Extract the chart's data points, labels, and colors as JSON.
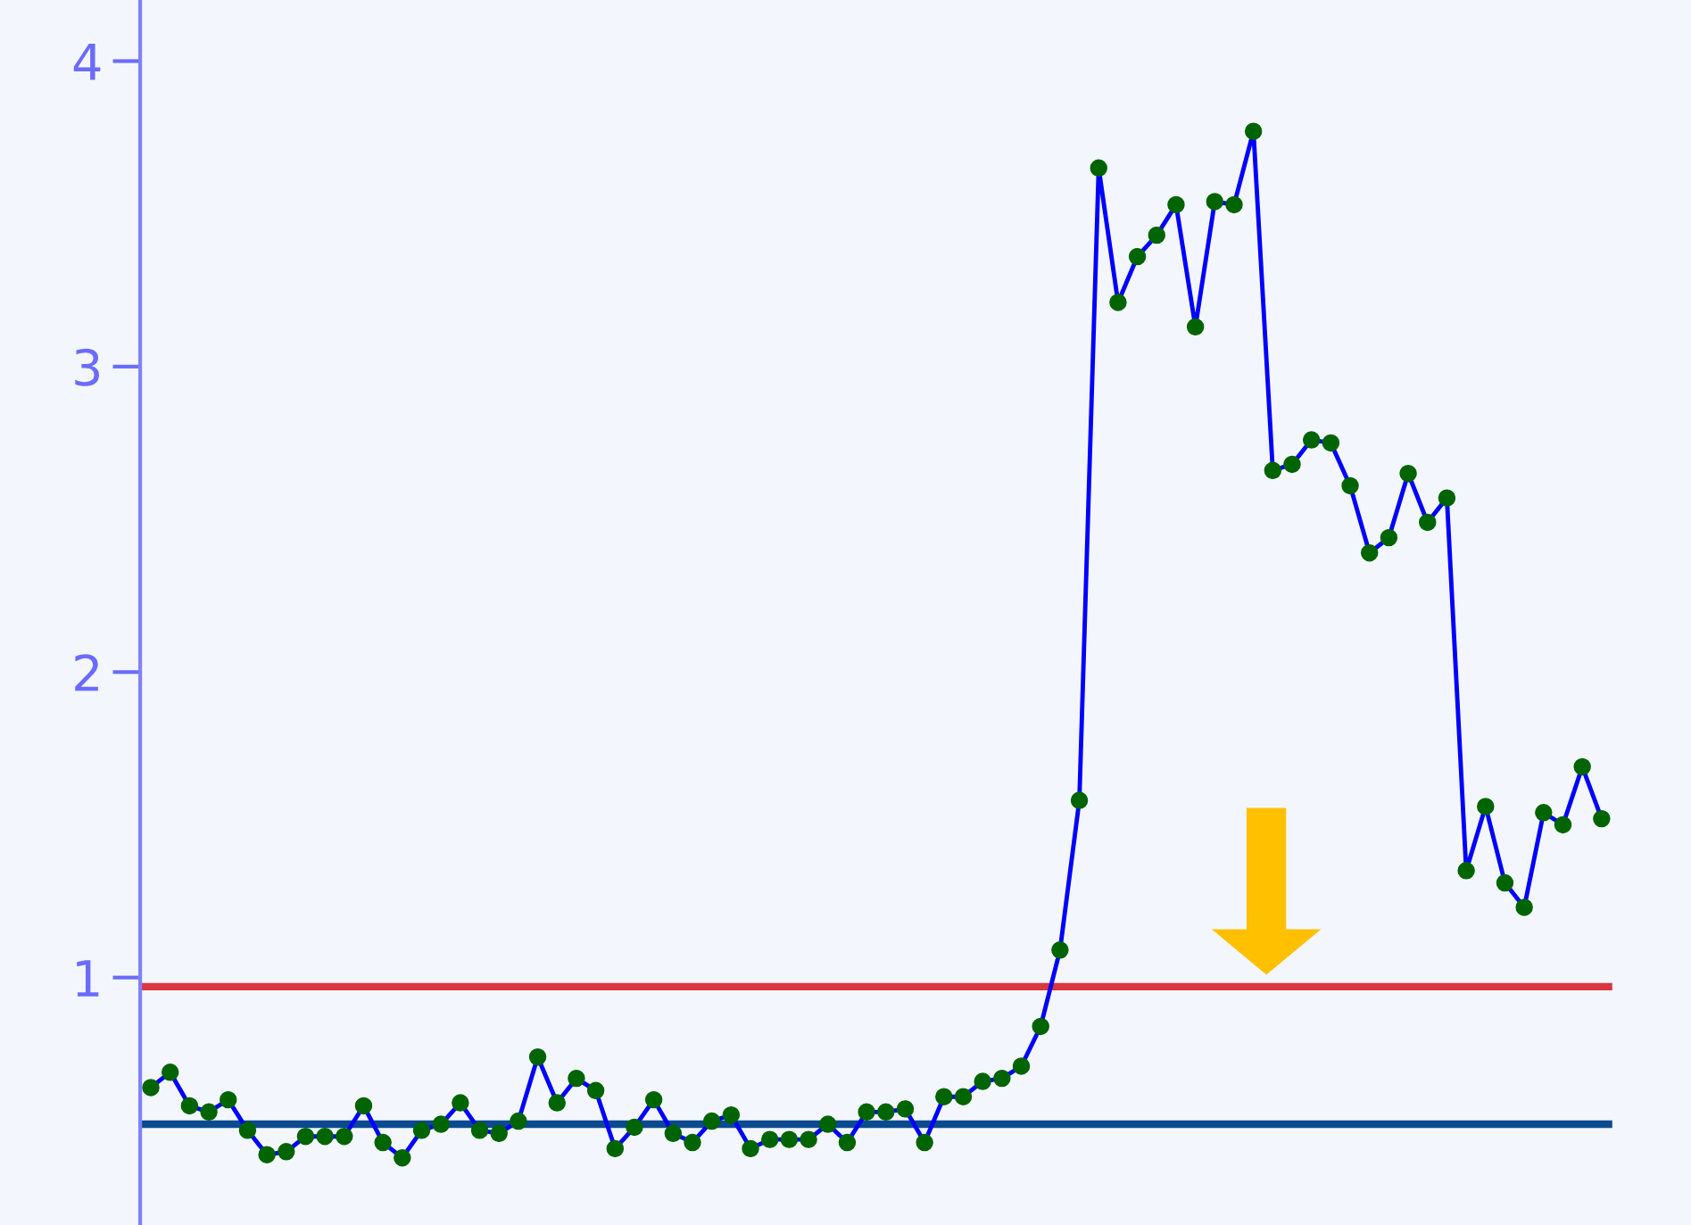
{
  "chart_data": {
    "type": "line",
    "categories": [
      null,
      null,
      null,
      null,
      null,
      null,
      null,
      null,
      null,
      null,
      null,
      null,
      null,
      null,
      null,
      null,
      null,
      null,
      null,
      null,
      null,
      null,
      null,
      null,
      null,
      null,
      null,
      null,
      null,
      null,
      null,
      null,
      null,
      null,
      null,
      null,
      null,
      null,
      null,
      null,
      null,
      null,
      null,
      null,
      null,
      null,
      null,
      null,
      null,
      null,
      null,
      null,
      null,
      null,
      null,
      null,
      null,
      null,
      null,
      null,
      null,
      null,
      null,
      null,
      null,
      null,
      null,
      null,
      null,
      null,
      null,
      null,
      null,
      null,
      null,
      null
    ],
    "series": [
      {
        "color": "#0000ff",
        "values": [
          0.64,
          0.69,
          0.58,
          0.56,
          0.6,
          0.5,
          0.42,
          0.43,
          0.48,
          0.48,
          0.48,
          0.58,
          0.46,
          0.41,
          0.5,
          0.52,
          0.59,
          0.5,
          0.49,
          0.53,
          0.74,
          0.59,
          0.67,
          0.63,
          0.44,
          0.51,
          0.6,
          0.49,
          0.46,
          0.53,
          0.55,
          0.44,
          0.47,
          0.47,
          0.47,
          0.52,
          0.46,
          0.56,
          0.56,
          0.57,
          0.46,
          0.61,
          0.61,
          0.66,
          0.67,
          0.71,
          0.84,
          1.09,
          1.58,
          3.65,
          3.21,
          3.36,
          3.43,
          3.53,
          3.13,
          3.54,
          3.53,
          3.77,
          2.66,
          2.68,
          2.76,
          2.75,
          2.61,
          2.39,
          2.44,
          2.65,
          2.49,
          2.57,
          1.35,
          1.56,
          1.31,
          1.23,
          1.54,
          1.5,
          1.69,
          1.52
        ]
      }
    ],
    "marker": "circle",
    "line_style": "solid",
    "ylim": [
      0.19,
      4.2
    ],
    "yticks": [
      1,
      2,
      3,
      4
    ],
    "grid": false,
    "legend": false,
    "tick_labels": "y",
    "ref_lines": [
      {
        "axis": "y",
        "value": 0.97,
        "color": "#d9363e",
        "line_style": "solid"
      },
      {
        "axis": "y",
        "value": 0.52,
        "color": "#0b4a8f",
        "line_style": "solid"
      }
    ]
  }
}
